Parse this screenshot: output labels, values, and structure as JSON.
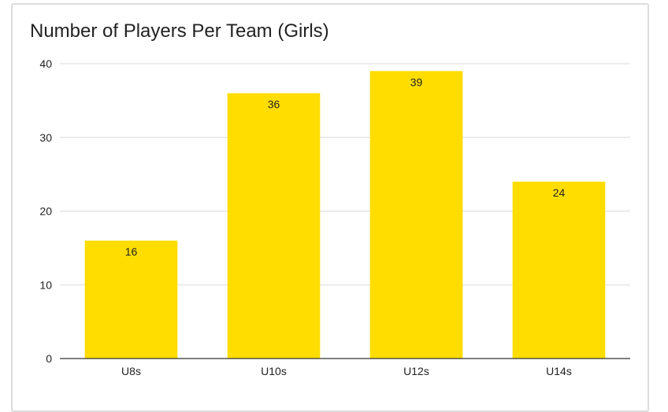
{
  "chart_data": {
    "type": "bar",
    "title": "Number of Players Per Team (Girls)",
    "categories": [
      "U8s",
      "U10s",
      "U12s",
      "U14s"
    ],
    "values": [
      16,
      36,
      39,
      24
    ],
    "ylim": [
      0,
      40
    ],
    "yticks": [
      0,
      10,
      20,
      30,
      40
    ],
    "grid": true,
    "legend": "none",
    "bar_color": "#FFDD00",
    "grid_color": "#d9d9d9",
    "axis_color": "#333333"
  }
}
